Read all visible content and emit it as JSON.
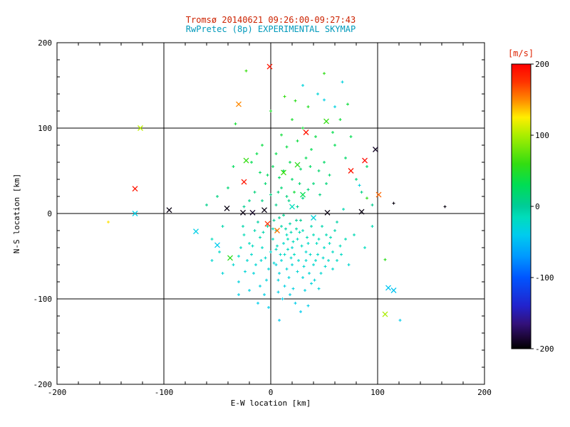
{
  "chart_data": {
    "type": "scatter",
    "title": "Tromsø 20140621 09:26:00-09:27:43",
    "subtitle": "RwPretec (8p) EXPERIMENTAL SKYMAP",
    "xlabel": "E-W location [km]",
    "ylabel": "N-S location [km]",
    "xlim": [
      -200,
      200
    ],
    "ylim": [
      -200,
      200
    ],
    "xticks": [
      -200,
      -100,
      0,
      100,
      200
    ],
    "yticks": [
      -200,
      -100,
      0,
      100,
      200
    ],
    "gridlines_x": [
      -100,
      0,
      100
    ],
    "gridlines_y": [
      -100,
      0,
      100
    ],
    "minor_tick_step": 20,
    "grid": true,
    "legend_position": "none",
    "colors": {
      "background": "#ffffff",
      "axis": "#000000",
      "title1": "#cc2200",
      "title2": "#0099bb",
      "colorbar_label": "#dd2200"
    },
    "colorbar": {
      "label": "[m/s]",
      "min": -200,
      "max": 200,
      "ticks": [
        200,
        100,
        0,
        -100,
        -200
      ]
    },
    "colormap": [
      {
        "v": -200,
        "c": "#000000"
      },
      {
        "v": -185,
        "c": "#1a0533"
      },
      {
        "v": -165,
        "c": "#33117a"
      },
      {
        "v": -140,
        "c": "#2222cc"
      },
      {
        "v": -100,
        "c": "#0055ff"
      },
      {
        "v": -70,
        "c": "#0099ff"
      },
      {
        "v": -40,
        "c": "#00ccee"
      },
      {
        "v": -15,
        "c": "#00ddbb"
      },
      {
        "v": 0,
        "c": "#00cc99"
      },
      {
        "v": 30,
        "c": "#00dd55"
      },
      {
        "v": 60,
        "c": "#33dd11"
      },
      {
        "v": 100,
        "c": "#aaee00"
      },
      {
        "v": 125,
        "c": "#ffee00"
      },
      {
        "v": 150,
        "c": "#ff8800"
      },
      {
        "v": 175,
        "c": "#ff3300"
      },
      {
        "v": 200,
        "c": "#ff0000"
      }
    ],
    "series": [
      {
        "name": "weak-echoes",
        "marker": "plus",
        "size": 2,
        "points": [
          [
            5,
            -20,
            -12
          ],
          [
            12,
            -35,
            -22
          ],
          [
            -3,
            -15,
            -6
          ],
          [
            20,
            -40,
            -26
          ],
          [
            8,
            -5,
            2
          ],
          [
            15,
            -25,
            -16
          ],
          [
            25,
            -30,
            -18
          ],
          [
            -10,
            -28,
            -12
          ],
          [
            0,
            -45,
            -24
          ],
          [
            18,
            -12,
            -8
          ],
          [
            30,
            -20,
            -14
          ],
          [
            -8,
            -40,
            -20
          ],
          [
            10,
            -55,
            -28
          ],
          [
            22,
            -48,
            -17
          ],
          [
            -15,
            -20,
            -10
          ],
          [
            35,
            -35,
            -22
          ],
          [
            5,
            -60,
            -30
          ],
          [
            14,
            -18,
            -6
          ],
          [
            28,
            -8,
            4
          ],
          [
            -5,
            -52,
            -24
          ],
          [
            40,
            -25,
            -13
          ],
          [
            16,
            -42,
            -20
          ],
          [
            2,
            -30,
            -15
          ],
          [
            33,
            -45,
            -26
          ],
          [
            -12,
            -10,
            -4
          ],
          [
            8,
            -70,
            -32
          ],
          [
            45,
            -30,
            -18
          ],
          [
            20,
            -60,
            -28
          ],
          [
            -20,
            -35,
            -16
          ],
          [
            12,
            -2,
            6
          ],
          [
            38,
            -15,
            -10
          ],
          [
            -2,
            -65,
            -30
          ],
          [
            26,
            -55,
            -24
          ],
          [
            50,
            -40,
            -20
          ],
          [
            6,
            -38,
            -18
          ],
          [
            -18,
            -48,
            -22
          ],
          [
            31,
            -62,
            -26
          ],
          [
            17,
            -75,
            -30
          ],
          [
            -7,
            -22,
            -9
          ],
          [
            42,
            -55,
            -22
          ],
          [
            24,
            -18,
            -7
          ],
          [
            -25,
            -25,
            -13
          ],
          [
            9,
            -48,
            -21
          ],
          [
            36,
            -70,
            -28
          ],
          [
            48,
            -15,
            -9
          ],
          [
            -14,
            -60,
            -27
          ],
          [
            21,
            -33,
            -16
          ],
          [
            3,
            -8,
            3
          ],
          [
            55,
            -35,
            -17
          ],
          [
            -22,
            -55,
            -25
          ],
          [
            13,
            -85,
            -34
          ],
          [
            29,
            -38,
            -19
          ],
          [
            44,
            -48,
            -21
          ],
          [
            -4,
            -78,
            -31
          ],
          [
            19,
            -52,
            -23
          ],
          [
            34,
            -28,
            -13
          ],
          [
            -16,
            -70,
            -29
          ],
          [
            52,
            -25,
            -11
          ],
          [
            7,
            -92,
            -36
          ],
          [
            25,
            -68,
            -27
          ],
          [
            40,
            -60,
            -24
          ],
          [
            -10,
            -85,
            -33
          ],
          [
            58,
            -45,
            -19
          ],
          [
            15,
            -65,
            -28
          ],
          [
            -28,
            -40,
            -18
          ],
          [
            47,
            -70,
            -26
          ],
          [
            11,
            -100,
            -38
          ],
          [
            32,
            -90,
            -33
          ],
          [
            -6,
            -95,
            -35
          ],
          [
            60,
            -20,
            -8
          ],
          [
            23,
            -105,
            -37
          ],
          [
            38,
            -82,
            -30
          ],
          [
            -20,
            -90,
            -34
          ],
          [
            54,
            -55,
            -22
          ],
          [
            28,
            -115,
            -40
          ],
          [
            65,
            -38,
            -15
          ],
          [
            18,
            -95,
            -35
          ],
          [
            -2,
            -110,
            -39
          ],
          [
            45,
            -88,
            -31
          ],
          [
            70,
            -30,
            -12
          ],
          [
            35,
            -108,
            -37
          ],
          [
            8,
            -125,
            -42
          ],
          [
            58,
            -65,
            -24
          ],
          [
            -12,
            -105,
            -38
          ],
          [
            2,
            -18,
            -10
          ],
          [
            27,
            -22,
            -12
          ],
          [
            -9,
            -55,
            -26
          ],
          [
            49,
            -52,
            -23
          ],
          [
            16,
            -30,
            -15
          ],
          [
            5,
            -42,
            -20
          ],
          [
            37,
            -48,
            -22
          ],
          [
            -24,
            -68,
            -28
          ],
          [
            62,
            -55,
            -21
          ],
          [
            21,
            -88,
            -33
          ],
          [
            43,
            -35,
            -17
          ],
          [
            10,
            -15,
            -7
          ],
          [
            -30,
            -50,
            -23
          ],
          [
            56,
            -28,
            -12
          ],
          [
            30,
            -75,
            -29
          ],
          [
            -17,
            -38,
            -18
          ],
          [
            24,
            -8,
            0
          ],
          [
            41,
            -78,
            -29
          ],
          [
            13,
            -48,
            -22
          ],
          [
            66,
            -48,
            -19
          ],
          [
            7,
            -78,
            -31
          ],
          [
            -26,
            -15,
            -8
          ],
          [
            51,
            -62,
            -24
          ],
          [
            19,
            -22,
            -11
          ],
          [
            33,
            -55,
            -23
          ],
          [
            3,
            -58,
            -27
          ],
          [
            5,
            10,
            6
          ],
          [
            15,
            20,
            12
          ],
          [
            -8,
            15,
            9
          ],
          [
            25,
            8,
            4
          ],
          [
            10,
            30,
            16
          ],
          [
            -15,
            25,
            13
          ],
          [
            20,
            40,
            22
          ],
          [
            0,
            22,
            11
          ],
          [
            30,
            18,
            9
          ],
          [
            -5,
            35,
            19
          ],
          [
            12,
            50,
            26
          ],
          [
            35,
            28,
            13
          ],
          [
            -20,
            15,
            7
          ],
          [
            18,
            60,
            31
          ],
          [
            8,
            42,
            23
          ],
          [
            28,
            52,
            21
          ],
          [
            -10,
            48,
            26
          ],
          [
            40,
            35,
            15
          ],
          [
            22,
            25,
            41
          ],
          [
            -25,
            8,
            3
          ],
          [
            33,
            65,
            29
          ],
          [
            5,
            70,
            33
          ],
          [
            15,
            78,
            36
          ],
          [
            45,
            50,
            19
          ],
          [
            -18,
            60,
            31
          ],
          [
            25,
            85,
            39
          ],
          [
            38,
            75,
            31
          ],
          [
            10,
            92,
            41
          ],
          [
            50,
            60,
            23
          ],
          [
            -8,
            80,
            37
          ],
          [
            30,
            100,
            43
          ],
          [
            20,
            110,
            46
          ],
          [
            42,
            90,
            36
          ],
          [
            0,
            120,
            49
          ],
          [
            55,
            45,
            17
          ],
          [
            35,
            125,
            51
          ],
          [
            2,
            55,
            28
          ],
          [
            46,
            22,
            10
          ],
          [
            -13,
            70,
            34
          ],
          [
            27,
            35,
            17
          ],
          [
            17,
            15,
            8
          ],
          [
            -3,
            45,
            24
          ],
          [
            52,
            35,
            14
          ],
          [
            7,
            25,
            13
          ],
          [
            37,
            55,
            24
          ],
          [
            60,
            80,
            31
          ],
          [
            -35,
            55,
            26
          ],
          [
            70,
            65,
            21
          ],
          [
            -40,
            30,
            16
          ],
          [
            65,
            110,
            41
          ],
          [
            80,
            40,
            13
          ],
          [
            -50,
            20,
            11
          ],
          [
            75,
            90,
            31
          ],
          [
            -45,
            -15,
            -9
          ],
          [
            85,
            25,
            9
          ],
          [
            -55,
            -30,
            -15
          ],
          [
            90,
            55,
            19
          ],
          [
            -60,
            10,
            6
          ],
          [
            -35,
            -60,
            -26
          ],
          [
            95,
            10,
            4
          ],
          [
            -30,
            -80,
            -31
          ],
          [
            62,
            -10,
            -6
          ],
          [
            -48,
            -45,
            -21
          ],
          [
            78,
            -25,
            -11
          ],
          [
            88,
            -40,
            -16
          ],
          [
            -45,
            -70,
            -28
          ],
          [
            -30,
            -95,
            -36
          ],
          [
            -55,
            -55,
            -25
          ],
          [
            107,
            -54,
            55
          ],
          [
            121,
            -125,
            -38
          ],
          [
            83,
            33,
            -33
          ],
          [
            90,
            18,
            57
          ],
          [
            -23,
            167,
            62
          ],
          [
            50,
            164,
            58
          ],
          [
            30,
            150,
            -30
          ],
          [
            67,
            154,
            -32
          ],
          [
            13,
            137,
            60
          ],
          [
            50,
            133,
            -35
          ],
          [
            60,
            125,
            -33
          ],
          [
            -152,
            -10,
            128
          ],
          [
            115,
            12,
            -195
          ],
          [
            163,
            8,
            -195
          ],
          [
            72,
            128,
            40
          ],
          [
            44,
            140,
            -28
          ],
          [
            23,
            132,
            55
          ],
          [
            -33,
            105,
            44
          ],
          [
            58,
            95,
            33
          ],
          [
            68,
            5,
            -10
          ],
          [
            73,
            -60,
            -25
          ],
          [
            95,
            -15,
            -12
          ]
        ]
      },
      {
        "name": "strong-echoes",
        "marker": "x",
        "size": 3.5,
        "points": [
          [
            -127,
            29,
            190
          ],
          [
            -122,
            100,
            105
          ],
          [
            -127,
            0,
            -35
          ],
          [
            -95,
            4,
            -195
          ],
          [
            -41,
            6,
            -195
          ],
          [
            -30,
            128,
            150
          ],
          [
            -26,
            1,
            -195
          ],
          [
            -25,
            37,
            190
          ],
          [
            -23,
            62,
            60
          ],
          [
            -38,
            -52,
            55
          ],
          [
            -50,
            -37,
            -40
          ],
          [
            -6,
            4,
            -195
          ],
          [
            -3,
            -12,
            178
          ],
          [
            -1,
            172,
            190
          ],
          [
            6,
            -20,
            155
          ],
          [
            12,
            48,
            62
          ],
          [
            25,
            57,
            55
          ],
          [
            33,
            95,
            190
          ],
          [
            52,
            108,
            60
          ],
          [
            53,
            1,
            -195
          ],
          [
            75,
            50,
            190
          ],
          [
            88,
            62,
            195
          ],
          [
            98,
            75,
            -190
          ],
          [
            101,
            22,
            160
          ],
          [
            85,
            2,
            -195
          ],
          [
            110,
            -87,
            -45
          ],
          [
            115,
            -90,
            -45
          ],
          [
            107,
            -118,
            100
          ],
          [
            -17,
            1,
            -190
          ],
          [
            40,
            -5,
            -30
          ],
          [
            20,
            8,
            -15
          ],
          [
            -70,
            -21,
            -36
          ],
          [
            30,
            22,
            32
          ]
        ]
      }
    ]
  }
}
